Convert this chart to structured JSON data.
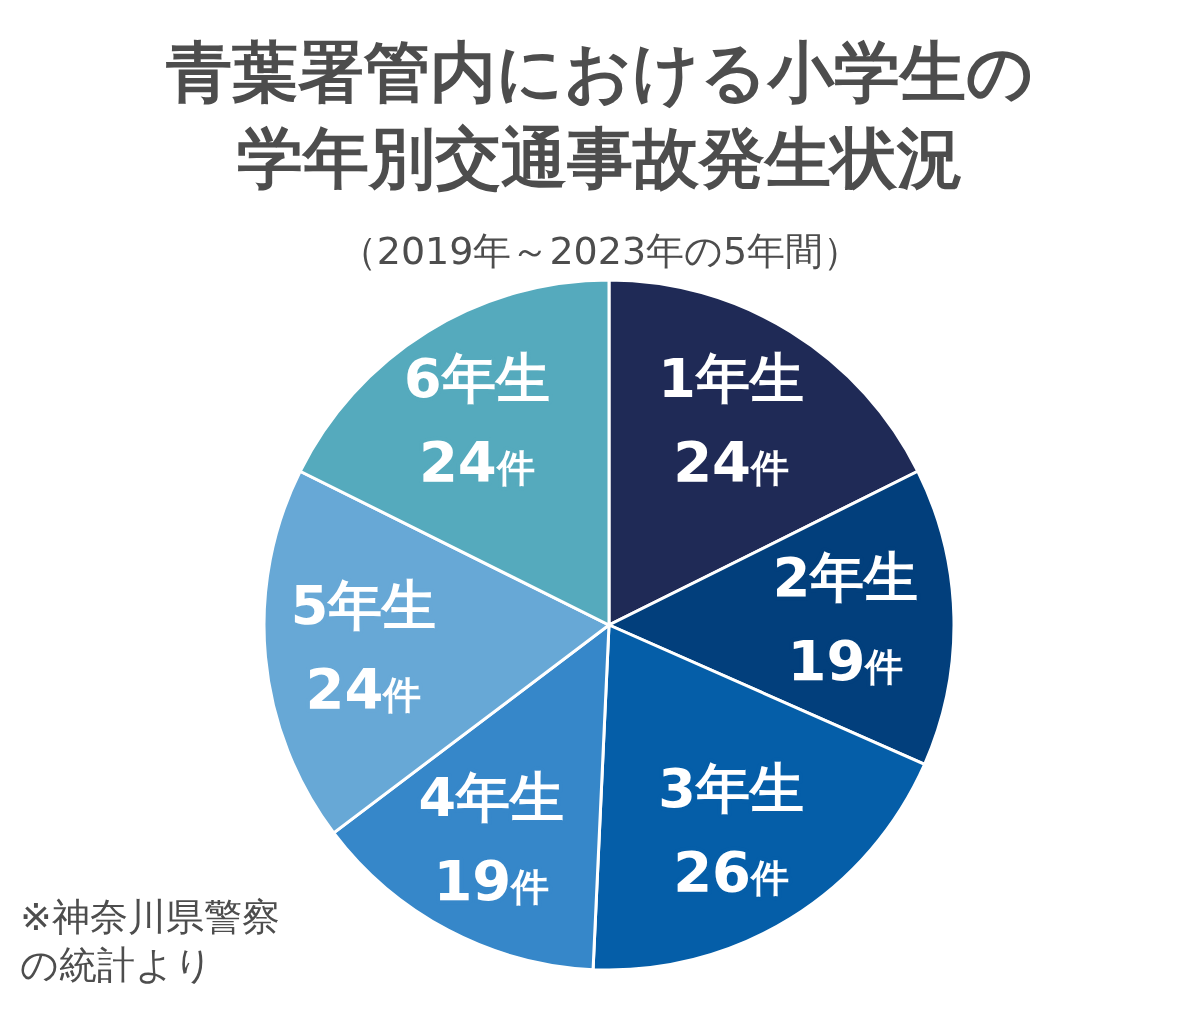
{
  "chart_data": {
    "type": "pie",
    "title": "青葉署管内における小学生の学年別交通事故発生状況",
    "subtitle": "（2019年～2023年の5年間）",
    "categories": [
      "1年生",
      "2年生",
      "3年生",
      "4年生",
      "5年生",
      "6年生"
    ],
    "values": [
      24,
      19,
      26,
      19,
      24,
      24
    ],
    "value_labels": [
      "24件",
      "19件",
      "26件",
      "19件",
      "24件",
      "24件"
    ],
    "colors": [
      "#1f2a56",
      "#023f7c",
      "#055ea8",
      "#3687c9",
      "#67a8d6",
      "#55aabd"
    ],
    "annotations": [
      "※神奈川県警察の統計より"
    ],
    "legend": false
  }
}
